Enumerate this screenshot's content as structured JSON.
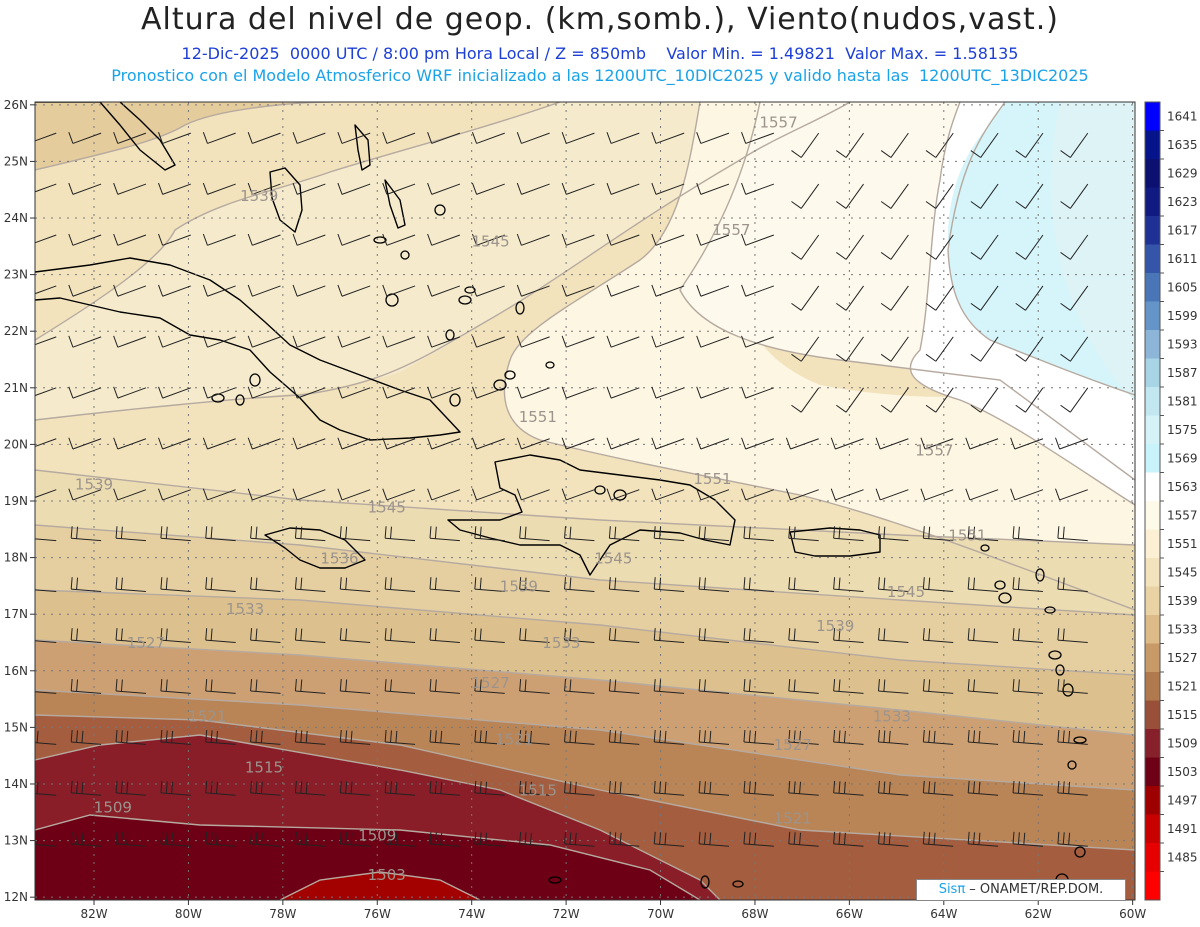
{
  "header": {
    "title": "Altura del nivel de geop. (km,somb.), Viento(nudos,vast.)",
    "line1": "12-Dic-2025  0000 UTC / 8:00 pm Hora Local / Z = 850mb    Valor Min. = 1.49821  Valor Max. = 1.58135",
    "line2": "Pronostico con el Modelo Atmosferico WRF inicializado a las 1200UTC_10DIC2025 y valido hasta las  1200UTC_13DIC2025"
  },
  "map": {
    "lon_labels": [
      "82W",
      "80W",
      "78W",
      "76W",
      "74W",
      "72W",
      "70W",
      "68W",
      "66W",
      "64W",
      "62W",
      "60W"
    ],
    "lat_labels": [
      "26N",
      "25N",
      "24N",
      "23N",
      "22N",
      "21N",
      "20N",
      "19N",
      "18N",
      "17N",
      "16N",
      "15N",
      "14N",
      "13N",
      "12N"
    ],
    "contour_labels": [
      {
        "text": "1557",
        "lon": -67.5,
        "lat": 25.6
      },
      {
        "text": "1557",
        "lon": -68.5,
        "lat": 23.7
      },
      {
        "text": "1539",
        "lon": -78.5,
        "lat": 24.3
      },
      {
        "text": "1545",
        "lon": -73.6,
        "lat": 23.5
      },
      {
        "text": "1551",
        "lon": -72.6,
        "lat": 20.4
      },
      {
        "text": "1557",
        "lon": -64.2,
        "lat": 19.8
      },
      {
        "text": "1551",
        "lon": -68.9,
        "lat": 19.3
      },
      {
        "text": "1551",
        "lon": -63.5,
        "lat": 18.3
      },
      {
        "text": "1539",
        "lon": -82.0,
        "lat": 19.2
      },
      {
        "text": "1545",
        "lon": -75.8,
        "lat": 18.8
      },
      {
        "text": "1536",
        "lon": -76.8,
        "lat": 17.9
      },
      {
        "text": "1545",
        "lon": -71.0,
        "lat": 17.9
      },
      {
        "text": "1539",
        "lon": -73.0,
        "lat": 17.4
      },
      {
        "text": "1545",
        "lon": -64.8,
        "lat": 17.3
      },
      {
        "text": "1533",
        "lon": -78.8,
        "lat": 17.0
      },
      {
        "text": "1539",
        "lon": -66.3,
        "lat": 16.7
      },
      {
        "text": "1527",
        "lon": -80.9,
        "lat": 16.4
      },
      {
        "text": "1533",
        "lon": -72.1,
        "lat": 16.4
      },
      {
        "text": "1527",
        "lon": -73.6,
        "lat": 15.7
      },
      {
        "text": "1533",
        "lon": -65.1,
        "lat": 15.1
      },
      {
        "text": "1521",
        "lon": -79.6,
        "lat": 15.1
      },
      {
        "text": "1527",
        "lon": -67.2,
        "lat": 14.6
      },
      {
        "text": "1521",
        "lon": -73.1,
        "lat": 14.7
      },
      {
        "text": "1515",
        "lon": -78.4,
        "lat": 14.2
      },
      {
        "text": "1515",
        "lon": -72.6,
        "lat": 13.8
      },
      {
        "text": "1521",
        "lon": -67.2,
        "lat": 13.3
      },
      {
        "text": "1509",
        "lon": -81.6,
        "lat": 13.5
      },
      {
        "text": "1509",
        "lon": -76.0,
        "lat": 13.0
      },
      {
        "text": "1503",
        "lon": -75.8,
        "lat": 12.3
      }
    ]
  },
  "colorbar": {
    "levels": [
      "1641",
      "1635",
      "1629",
      "1623",
      "1617",
      "1611",
      "1605",
      "1599",
      "1593",
      "1587",
      "1581",
      "1575",
      "1569",
      "1563",
      "1557",
      "1551",
      "1545",
      "1539",
      "1533",
      "1527",
      "1521",
      "1515",
      "1509",
      "1503",
      "1497",
      "1491",
      "1485"
    ],
    "colors": [
      "#0000ff",
      "#06148c",
      "#0c1070",
      "#101a80",
      "#1f3194",
      "#3455a8",
      "#4a76b8",
      "#6595c8",
      "#8db5d8",
      "#a8d5e6",
      "#c2e7f0",
      "#d5f2f6",
      "#c9f3fa",
      "#ffffff",
      "#fdfaea",
      "#fbf0d4",
      "#f2e3bd",
      "#e9d3a4",
      "#dcbb88",
      "#c89a68",
      "#b07a4e",
      "#985138",
      "#86202a",
      "#6e0016",
      "#9e0000",
      "#c80000",
      "#e60000",
      "#ff0000"
    ]
  },
  "credit": {
    "brand": "Sisπ",
    "text": " – ONAMET/REP.DOM."
  }
}
